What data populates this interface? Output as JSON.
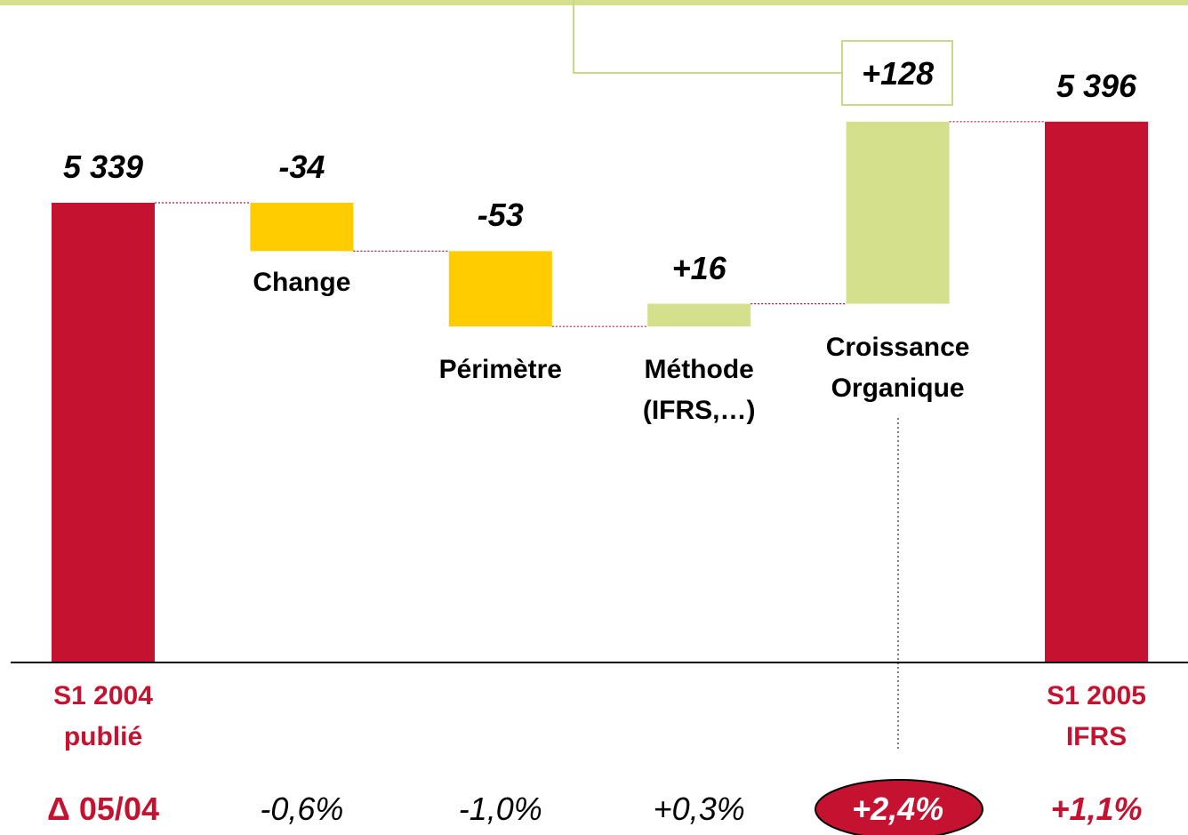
{
  "chart_data": {
    "type": "waterfall",
    "categories": [
      "S1 2004\npublié",
      "Change",
      "Périmètre",
      "Méthode\n(IFRS,…)",
      "Croissance\nOrganique",
      "S1 2005\nIFRS"
    ],
    "values": [
      5339,
      -34,
      -53,
      16,
      128,
      5396
    ],
    "value_labels": [
      "5 339",
      "-34",
      "-53",
      "+16",
      "+128",
      "5 396"
    ],
    "colors": {
      "total": "#c41230",
      "decrease": "#ffcc00",
      "increase": "#d4e08c"
    },
    "delta_title": "Δ 05/04",
    "delta_labels": [
      null,
      "-0,6%",
      "-1,0%",
      "+0,3%",
      "+2,4%",
      "+1,1%"
    ]
  }
}
